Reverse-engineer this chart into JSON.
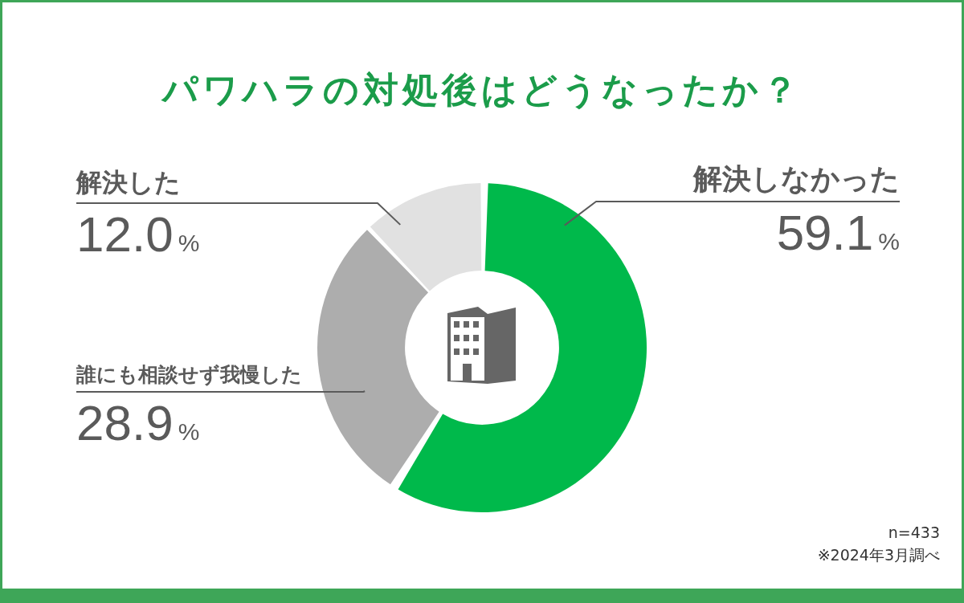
{
  "chart_data": {
    "type": "donut",
    "title": "パワハラの対処後はどうなったか？",
    "categories": [
      "解決しなかった",
      "誰にも相談せず我慢した",
      "解決した"
    ],
    "values": [
      59.1,
      28.9,
      12.0
    ],
    "colors": [
      "#00b94b",
      "#adadad",
      "#e1e1e1"
    ],
    "value_labels": [
      "59.1%",
      "28.9%",
      "12.0%"
    ],
    "annotations": [
      "n=433",
      "※2024年3月調べ"
    ]
  }
}
